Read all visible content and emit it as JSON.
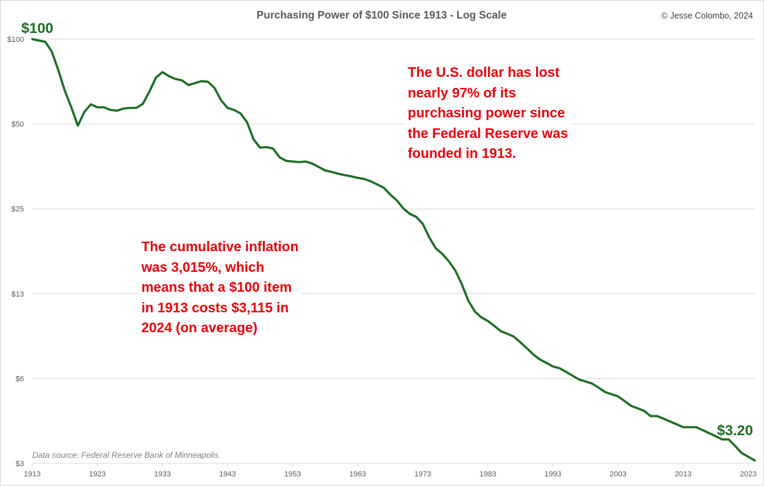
{
  "chart_data": {
    "type": "line",
    "title": "Purchasing Power of $100 Since 1913 - Log Scale",
    "credit": "© Jesse Colombo, 2024",
    "source_note": "Data source: Federal Reserve Bank of Minneapolis",
    "xlabel": "",
    "ylabel": "",
    "y_scale": "log2",
    "ylim": [
      3.125,
      100
    ],
    "xlim": [
      1913,
      2024
    ],
    "grid": true,
    "legend": "none",
    "y_ticks": [
      {
        "value": 100,
        "label": "$100"
      },
      {
        "value": 50,
        "label": "$50"
      },
      {
        "value": 25,
        "label": "$25"
      },
      {
        "value": 12.5,
        "label": "$13"
      },
      {
        "value": 6.25,
        "label": "$6"
      },
      {
        "value": 3.125,
        "label": "$3"
      }
    ],
    "x_ticks": [
      1913,
      1923,
      1933,
      1943,
      1953,
      1963,
      1973,
      1983,
      1993,
      2003,
      2013,
      2023
    ],
    "series": [
      {
        "name": "Purchasing power of $100",
        "color": "#1e6b26",
        "x": [
          1913,
          1914,
          1915,
          1916,
          1917,
          1918,
          1919,
          1920,
          1921,
          1922,
          1923,
          1924,
          1925,
          1926,
          1927,
          1928,
          1929,
          1930,
          1931,
          1932,
          1933,
          1934,
          1935,
          1936,
          1937,
          1938,
          1939,
          1940,
          1941,
          1942,
          1943,
          1944,
          1945,
          1946,
          1947,
          1948,
          1949,
          1950,
          1951,
          1952,
          1953,
          1954,
          1955,
          1956,
          1957,
          1958,
          1959,
          1960,
          1961,
          1962,
          1963,
          1964,
          1965,
          1966,
          1967,
          1968,
          1969,
          1970,
          1971,
          1972,
          1973,
          1974,
          1975,
          1976,
          1977,
          1978,
          1979,
          1980,
          1981,
          1982,
          1983,
          1984,
          1985,
          1986,
          1987,
          1988,
          1989,
          1990,
          1991,
          1992,
          1993,
          1994,
          1995,
          1996,
          1997,
          1998,
          1999,
          2000,
          2001,
          2002,
          2003,
          2004,
          2005,
          2006,
          2007,
          2008,
          2009,
          2010,
          2011,
          2012,
          2013,
          2014,
          2015,
          2016,
          2017,
          2018,
          2019,
          2020,
          2021,
          2022,
          2023,
          2024
        ],
        "values": [
          100,
          98.9,
          97.8,
          90.4,
          77.7,
          65.6,
          57.3,
          49.3,
          55.2,
          58.7,
          57.3,
          57.3,
          56.1,
          55.7,
          56.7,
          57.0,
          57.0,
          59.0,
          65.2,
          73.0,
          76.4,
          73.9,
          72.2,
          71.4,
          68.7,
          69.8,
          71.0,
          70.6,
          67.1,
          60.7,
          57.0,
          56.1,
          54.5,
          50.7,
          44.1,
          41.2,
          41.4,
          40.9,
          38.1,
          37.0,
          36.8,
          36.6,
          36.8,
          36.2,
          35.2,
          34.2,
          33.8,
          33.3,
          32.9,
          32.6,
          32.2,
          31.9,
          31.3,
          30.5,
          29.7,
          28.1,
          26.8,
          25.1,
          24.0,
          23.4,
          22.1,
          19.8,
          18.1,
          17.3,
          16.3,
          15.1,
          13.5,
          11.8,
          10.8,
          10.3,
          10.0,
          9.6,
          9.2,
          9.0,
          8.8,
          8.4,
          8.0,
          7.6,
          7.3,
          7.1,
          6.9,
          6.8,
          6.6,
          6.4,
          6.2,
          6.1,
          6.0,
          5.8,
          5.6,
          5.5,
          5.4,
          5.2,
          5.0,
          4.9,
          4.8,
          4.6,
          4.6,
          4.5,
          4.4,
          4.3,
          4.2,
          4.2,
          4.2,
          4.1,
          4.0,
          3.9,
          3.8,
          3.8,
          3.6,
          3.4,
          3.3,
          3.2
        ]
      }
    ],
    "data_labels": [
      {
        "text": "$100",
        "year": 1913,
        "value": 100
      },
      {
        "text": "$3.20",
        "year": 2024,
        "value": 3.2
      }
    ],
    "annotations": [
      {
        "text": "The U.S. dollar has lost\nnearly 97% of its\npurchasing power since\nthe Federal Reserve was\nfounded in 1913.",
        "color": "#e8000b"
      },
      {
        "text": "The cumulative inflation\nwas 3,015%, which\nmeans that a $100 item\nin 1913 costs $3,115 in\n2024 (on average)",
        "color": "#e8000b"
      }
    ]
  }
}
